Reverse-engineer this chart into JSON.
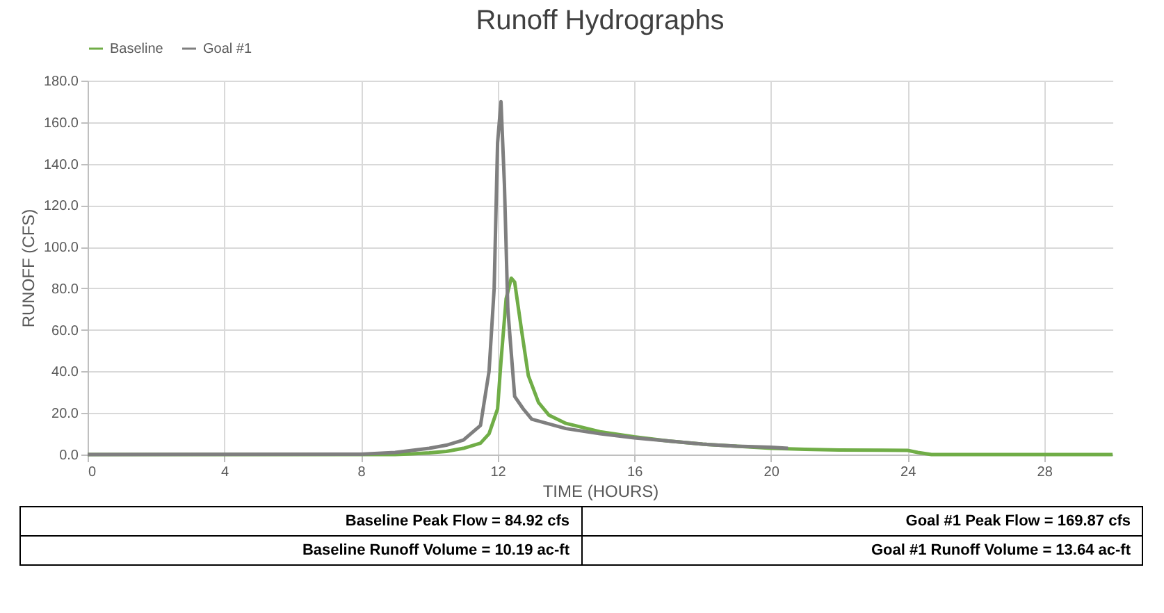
{
  "chart_data": {
    "type": "line",
    "title": "Runoff Hydrographs",
    "xlabel": "TIME (HOURS)",
    "ylabel": "RUNOFF (CFS)",
    "xlim": [
      0,
      30
    ],
    "xticks": [
      0,
      4,
      8,
      12,
      16,
      20,
      24,
      28
    ],
    "ylim": [
      0,
      180
    ],
    "yticks": [
      {
        "value": 0,
        "label": "0.0"
      },
      {
        "value": 20,
        "label": "20.0"
      },
      {
        "value": 40,
        "label": "40.0"
      },
      {
        "value": 60,
        "label": "60.0"
      },
      {
        "value": 80,
        "label": "80.0"
      },
      {
        "value": 100,
        "label": "100.0"
      },
      {
        "value": 120,
        "label": "120.0"
      },
      {
        "value": 140,
        "label": "140.0"
      },
      {
        "value": 160,
        "label": "160.0"
      },
      {
        "value": 180,
        "label": "180.0"
      }
    ],
    "grid": true,
    "legend": "top",
    "marker": "none",
    "line_style": "solid",
    "series": [
      {
        "name": "Baseline",
        "color": "#70ad47",
        "x": [
          0,
          9,
          9.5,
          10,
          10.5,
          11,
          11.5,
          11.75,
          12,
          12.1,
          12.25,
          12.4,
          12.5,
          12.7,
          12.9,
          13.2,
          13.5,
          14,
          15,
          16,
          17,
          18,
          19,
          20,
          21,
          22,
          24,
          24.3,
          24.7,
          30
        ],
        "values": [
          0,
          0,
          0.3,
          0.8,
          1.5,
          3,
          5.5,
          10,
          22,
          45,
          75,
          84.92,
          83,
          60,
          38,
          25,
          19,
          15,
          11,
          8.5,
          6.5,
          5,
          4,
          3,
          2.5,
          2.2,
          2,
          1,
          0,
          0
        ]
      },
      {
        "name": "Goal #1",
        "color": "#7f7f7f",
        "x": [
          0,
          8,
          9,
          10,
          10.5,
          11,
          11.5,
          11.75,
          11.9,
          12,
          12.1,
          12.2,
          12.3,
          12.5,
          12.75,
          13,
          14,
          15,
          16,
          17,
          18,
          19,
          20,
          20.5
        ],
        "values": [
          0,
          0.2,
          1,
          3,
          4.5,
          7,
          14,
          40,
          80,
          150,
          169.87,
          130,
          70,
          28,
          22,
          17,
          12.5,
          10,
          8,
          6.5,
          5,
          4,
          3.5,
          3
        ]
      }
    ],
    "annotations": [
      "Baseline Peak Flow =  84.92 cfs",
      "Goal #1 Peak Flow =  169.87 cfs",
      "Baseline Runoff Volume =  10.19 ac-ft",
      "Goal #1 Runoff Volume =  13.64 ac-ft"
    ]
  }
}
